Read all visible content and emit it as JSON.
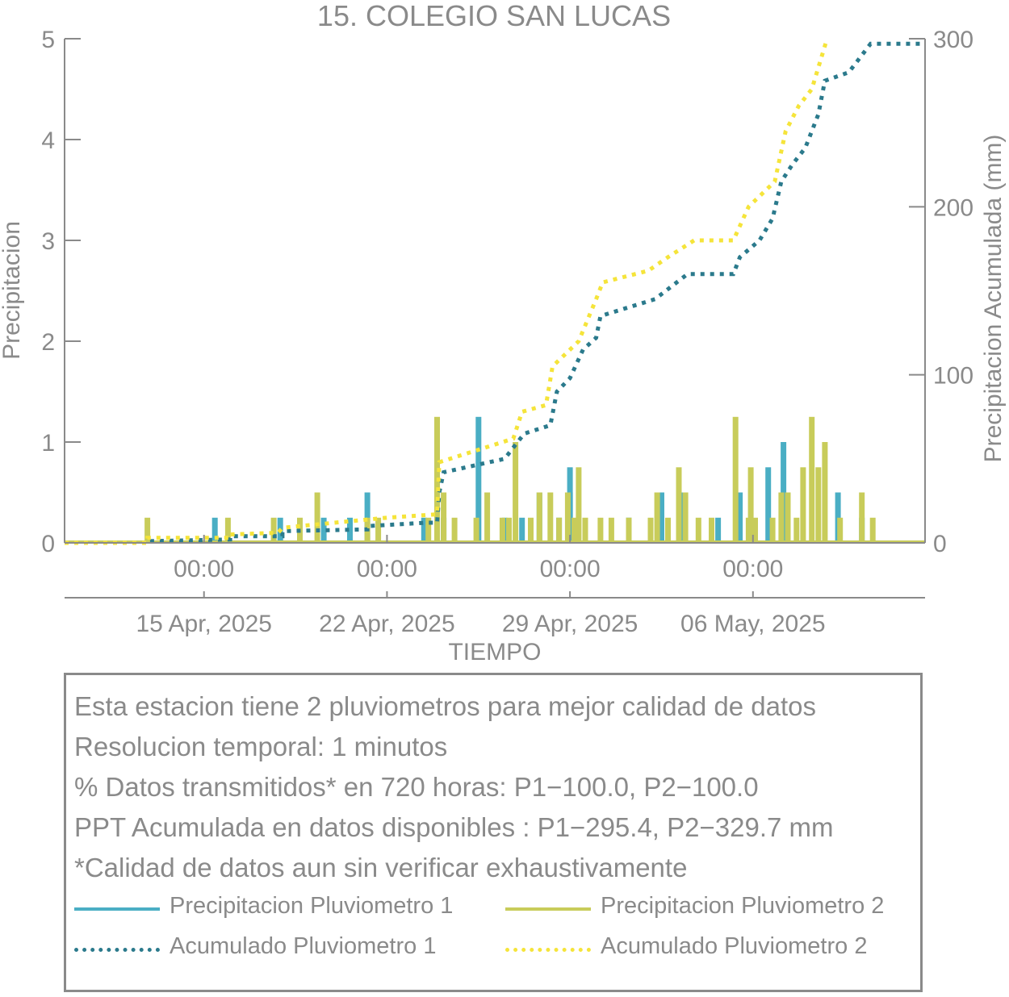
{
  "chart_data": {
    "type": "bar",
    "title": "15. COLEGIO SAN LUCAS",
    "xlabel": "TIEMPO",
    "ylabel": "Precipitacion",
    "y2label": "Precipitacion Acumulada (mm)",
    "ylim": [
      0,
      5
    ],
    "y2lim": [
      0,
      300
    ],
    "yticks": [
      "0",
      "1",
      "2",
      "3",
      "4",
      "5"
    ],
    "y2ticks": [
      "0",
      "100",
      "200",
      "300"
    ],
    "xlim": [
      "2025-04-09T16:00",
      "2025-05-12T14:00"
    ],
    "xticks": [
      {
        "time": "00:00",
        "date": "15 Apr, 2025"
      },
      {
        "time": "00:00",
        "date": "22 Apr, 2025"
      },
      {
        "time": "00:00",
        "date": "29 Apr, 2025"
      },
      {
        "time": "00:00",
        "date": "06 May, 2025"
      }
    ],
    "grid": false,
    "series": [
      {
        "name": "Precipitacion Pluviometro 1",
        "kind": "bar",
        "color": "#4aaec4",
        "points": [
          [
            "2025-04-15T10:00",
            0.25
          ],
          [
            "2025-04-17T22:00",
            0.25
          ],
          [
            "2025-04-19T14:00",
            0.25
          ],
          [
            "2025-04-20T14:00",
            0.25
          ],
          [
            "2025-04-21T06:00",
            0.5
          ],
          [
            "2025-04-23T10:00",
            0.25
          ],
          [
            "2025-04-24T04:00",
            0.25
          ],
          [
            "2025-04-25T12:00",
            1.25
          ],
          [
            "2025-04-26T12:00",
            0.25
          ],
          [
            "2025-04-27T04:00",
            0.25
          ],
          [
            "2025-04-27T20:00",
            0.5
          ],
          [
            "2025-04-28T14:00",
            0.25
          ],
          [
            "2025-04-29T00:00",
            0.5
          ],
          [
            "2025-04-29T00:00",
            0.75
          ],
          [
            "2025-05-01T06:00",
            0.25
          ],
          [
            "2025-05-02T12:00",
            0.5
          ],
          [
            "2025-05-03T06:00",
            0.5
          ],
          [
            "2025-05-04T16:00",
            0.25
          ],
          [
            "2025-05-05T12:00",
            0.5
          ],
          [
            "2025-05-06T14:00",
            0.75
          ],
          [
            "2025-05-07T04:00",
            1.0
          ],
          [
            "2025-05-09T06:00",
            0.5
          ],
          [
            "2025-05-10T04:00",
            0.25
          ]
        ]
      },
      {
        "name": "Precipitacion Pluviometro 2",
        "kind": "bar",
        "color": "#c8cc5a",
        "points": [
          [
            "2025-04-12T20:00",
            0.25
          ],
          [
            "2025-04-15T22:00",
            0.25
          ],
          [
            "2025-04-17T16:00",
            0.25
          ],
          [
            "2025-04-18T16:00",
            0.25
          ],
          [
            "2025-04-19T08:00",
            0.5
          ],
          [
            "2025-04-21T06:00",
            0.25
          ],
          [
            "2025-04-21T16:00",
            0.25
          ],
          [
            "2025-04-23T14:00",
            0.25
          ],
          [
            "2025-04-23T22:00",
            1.25
          ],
          [
            "2025-04-24T04:00",
            0.5
          ],
          [
            "2025-04-24T14:00",
            0.25
          ],
          [
            "2025-04-25T10:00",
            0.25
          ],
          [
            "2025-04-25T20:00",
            0.5
          ],
          [
            "2025-04-26T10:00",
            0.25
          ],
          [
            "2025-04-26T16:00",
            0.25
          ],
          [
            "2025-04-26T22:00",
            1.0
          ],
          [
            "2025-04-27T12:00",
            0.25
          ],
          [
            "2025-04-27T20:00",
            0.5
          ],
          [
            "2025-04-28T06:00",
            0.5
          ],
          [
            "2025-04-28T14:00",
            0.25
          ],
          [
            "2025-04-28T22:00",
            0.5
          ],
          [
            "2025-04-29T04:00",
            0.25
          ],
          [
            "2025-04-29T08:00",
            0.75
          ],
          [
            "2025-04-29T14:00",
            0.25
          ],
          [
            "2025-04-30T04:00",
            0.25
          ],
          [
            "2025-04-30T14:00",
            0.25
          ],
          [
            "2025-05-01T06:00",
            0.25
          ],
          [
            "2025-05-02T02:00",
            0.25
          ],
          [
            "2025-05-02T08:00",
            0.5
          ],
          [
            "2025-05-02T18:00",
            0.25
          ],
          [
            "2025-05-03T04:00",
            0.75
          ],
          [
            "2025-05-03T10:00",
            0.5
          ],
          [
            "2025-05-03T22:00",
            0.25
          ],
          [
            "2025-05-04T10:00",
            0.25
          ],
          [
            "2025-05-05T08:00",
            1.25
          ],
          [
            "2025-05-05T20:00",
            0.25
          ],
          [
            "2025-05-05T22:00",
            0.75
          ],
          [
            "2025-05-06T02:00",
            0.25
          ],
          [
            "2025-05-06T18:00",
            0.25
          ],
          [
            "2025-05-07T02:00",
            0.5
          ],
          [
            "2025-05-07T08:00",
            0.5
          ],
          [
            "2025-05-07T16:00",
            0.25
          ],
          [
            "2025-05-07T22:00",
            0.75
          ],
          [
            "2025-05-08T06:00",
            1.25
          ],
          [
            "2025-05-08T12:00",
            0.75
          ],
          [
            "2025-05-08T18:00",
            1.0
          ],
          [
            "2025-05-09T08:00",
            0.25
          ],
          [
            "2025-05-10T04:00",
            0.5
          ],
          [
            "2025-05-10T14:00",
            0.25
          ]
        ]
      },
      {
        "name": "Acumulado Pluviometro 1",
        "kind": "line",
        "axis": "right",
        "color": "#2b7a8c",
        "points": [
          [
            "2025-04-09T16:00",
            0
          ],
          [
            "2025-04-12T20:00",
            0
          ],
          [
            "2025-04-12T20:00",
            1
          ],
          [
            "2025-04-16T00:00",
            2
          ],
          [
            "2025-04-16T00:00",
            4
          ],
          [
            "2025-04-18T00:00",
            4
          ],
          [
            "2025-04-18T00:00",
            7
          ],
          [
            "2025-04-21T06:00",
            8
          ],
          [
            "2025-04-21T06:00",
            10
          ],
          [
            "2025-04-23T12:00",
            12
          ],
          [
            "2025-04-23T22:00",
            12
          ],
          [
            "2025-04-24T00:00",
            30
          ],
          [
            "2025-04-24T04:00",
            42
          ],
          [
            "2025-04-26T12:00",
            50
          ],
          [
            "2025-04-27T06:00",
            65
          ],
          [
            "2025-04-28T06:00",
            70
          ],
          [
            "2025-04-28T12:00",
            90
          ],
          [
            "2025-04-29T00:00",
            98
          ],
          [
            "2025-04-29T12:00",
            115
          ],
          [
            "2025-04-30T00:00",
            122
          ],
          [
            "2025-04-30T04:00",
            135
          ],
          [
            "2025-05-02T06:00",
            145
          ],
          [
            "2025-05-03T12:00",
            160
          ],
          [
            "2025-05-05T06:00",
            160
          ],
          [
            "2025-05-05T12:00",
            170
          ],
          [
            "2025-05-06T06:00",
            180
          ],
          [
            "2025-05-06T18:00",
            193
          ],
          [
            "2025-05-07T02:00",
            215
          ],
          [
            "2025-05-07T12:00",
            225
          ],
          [
            "2025-05-08T00:00",
            235
          ],
          [
            "2025-05-08T12:00",
            255
          ],
          [
            "2025-05-08T18:00",
            275
          ],
          [
            "2025-05-09T16:00",
            280
          ],
          [
            "2025-05-10T12:00",
            297
          ],
          [
            "2025-05-12T14:00",
            297
          ]
        ]
      },
      {
        "name": "Acumulado Pluviometro 2",
        "kind": "line",
        "axis": "right",
        "color": "#f5e43a",
        "points": [
          [
            "2025-04-09T16:00",
            0
          ],
          [
            "2025-04-12T20:00",
            0
          ],
          [
            "2025-04-12T20:00",
            3
          ],
          [
            "2025-04-16T00:00",
            3
          ],
          [
            "2025-04-16T00:00",
            5
          ],
          [
            "2025-04-17T20:00",
            6
          ],
          [
            "2025-04-18T00:00",
            9
          ],
          [
            "2025-04-20T00:00",
            12
          ],
          [
            "2025-04-22T00:00",
            15
          ],
          [
            "2025-04-23T22:00",
            17
          ],
          [
            "2025-04-24T00:00",
            48
          ],
          [
            "2025-04-26T20:00",
            62
          ],
          [
            "2025-04-27T04:00",
            78
          ],
          [
            "2025-04-28T02:00",
            82
          ],
          [
            "2025-04-28T08:00",
            105
          ],
          [
            "2025-04-29T08:00",
            120
          ],
          [
            "2025-04-30T00:00",
            145
          ],
          [
            "2025-04-30T06:00",
            155
          ],
          [
            "2025-05-02T00:00",
            162
          ],
          [
            "2025-05-02T18:00",
            170
          ],
          [
            "2025-05-03T18:00",
            180
          ],
          [
            "2025-05-05T06:00",
            180
          ],
          [
            "2025-05-05T20:00",
            200
          ],
          [
            "2025-05-06T20:00",
            215
          ],
          [
            "2025-05-07T06:00",
            245
          ],
          [
            "2025-05-07T18:00",
            260
          ],
          [
            "2025-05-08T06:00",
            270
          ],
          [
            "2025-05-08T20:00",
            300
          ]
        ]
      }
    ]
  },
  "info": {
    "lines": [
      "Esta estacion tiene 2 pluviometros para mejor calidad de datos",
      "Resolucion temporal: 1 minutos",
      "% Datos transmitidos* en 720 horas: P1−100.0, P2−100.0",
      "PPT Acumulada en datos disponibles : P1−295.4, P2−329.7 mm",
      "*Calidad de datos aun sin verificar exhaustivamente"
    ],
    "legend": [
      {
        "label": "Precipitacion Pluviometro 1",
        "color": "#4aaec4",
        "style": "solid"
      },
      {
        "label": "Precipitacion Pluviometro 2",
        "color": "#c8cc5a",
        "style": "solid"
      },
      {
        "label": "Acumulado Pluviometro 1",
        "color": "#2b7a8c",
        "style": "dotted"
      },
      {
        "label": "Acumulado Pluviometro 2",
        "color": "#f5e43a",
        "style": "dotted"
      }
    ]
  }
}
